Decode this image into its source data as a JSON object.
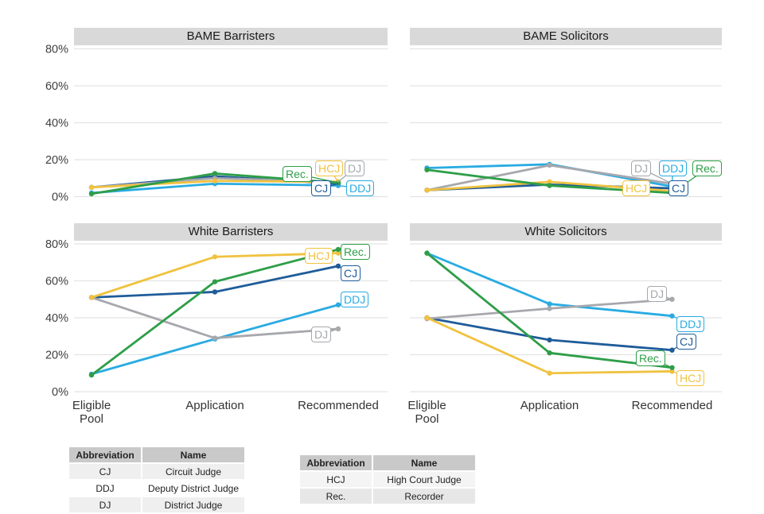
{
  "chart_data": {
    "type": "line",
    "categories": [
      "Eligible Pool",
      "Application",
      "Recommended"
    ],
    "y_axis": {
      "ticks": [
        0,
        20,
        40,
        60,
        80
      ],
      "format": "percent",
      "range": [
        0,
        85
      ]
    },
    "grid": "horizontal-only",
    "legend_position": "boxed series labels at right end of each line",
    "series_colors": {
      "CJ": "#1F5C99",
      "DDJ": "#29ABE2",
      "DJ": "#A6A8AD",
      "HCJ": "#F0C23F",
      "Rec.": "#2E9E48"
    },
    "panels": [
      {
        "title": "BAME Barristers",
        "series": [
          {
            "name": "CJ",
            "values": [
              5,
              11,
              7
            ]
          },
          {
            "name": "DDJ",
            "values": [
              2,
              7,
              6
            ]
          },
          {
            "name": "DJ",
            "values": [
              5,
              10,
              8
            ]
          },
          {
            "name": "HCJ",
            "values": [
              5,
              8.5,
              8
            ]
          },
          {
            "name": "Rec.",
            "values": [
              1.5,
              12.5,
              7.5
            ]
          }
        ]
      },
      {
        "title": "BAME Solicitors",
        "series": [
          {
            "name": "CJ",
            "values": [
              3.5,
              6.5,
              4.5
            ]
          },
          {
            "name": "DDJ",
            "values": [
              15.5,
              17.5,
              5.5
            ]
          },
          {
            "name": "DJ",
            "values": [
              3.5,
              17,
              7
            ]
          },
          {
            "name": "HCJ",
            "values": [
              3.5,
              8,
              3
            ]
          },
          {
            "name": "Rec.",
            "values": [
              14.5,
              6,
              2
            ]
          }
        ]
      },
      {
        "title": "White Barristers",
        "series": [
          {
            "name": "CJ",
            "values": [
              51,
              54,
              68
            ]
          },
          {
            "name": "DDJ",
            "values": [
              9.5,
              28.5,
              47
            ]
          },
          {
            "name": "DJ",
            "values": [
              51,
              29,
              34
            ]
          },
          {
            "name": "HCJ",
            "values": [
              51,
              73,
              75
            ]
          },
          {
            "name": "Rec.",
            "values": [
              9,
              59.5,
              77
            ]
          }
        ]
      },
      {
        "title": "White Solicitors",
        "series": [
          {
            "name": "CJ",
            "values": [
              40,
              28,
              22.5
            ]
          },
          {
            "name": "DDJ",
            "values": [
              75,
              47.5,
              41
            ]
          },
          {
            "name": "DJ",
            "values": [
              39.5,
              45,
              50
            ]
          },
          {
            "name": "HCJ",
            "values": [
              40,
              10,
              11
            ]
          },
          {
            "name": "Rec.",
            "values": [
              75,
              21,
              13
            ]
          }
        ]
      }
    ]
  },
  "style_colors": {
    "strip_background": "#d9d9d9",
    "gridline": "#e3e3e3",
    "axis_text": "#3f3f3f"
  },
  "tables": [
    {
      "headers": [
        "Abbreviation",
        "Name"
      ],
      "rows": [
        [
          "CJ",
          "Circuit Judge"
        ],
        [
          "DDJ",
          "Deputy District Judge"
        ],
        [
          "DJ",
          "District Judge"
        ]
      ]
    },
    {
      "headers": [
        "Abbreviation",
        "Name"
      ],
      "rows": [
        [
          "HCJ",
          "High Court Judge"
        ],
        [
          "Rec.",
          "Recorder"
        ]
      ]
    }
  ]
}
